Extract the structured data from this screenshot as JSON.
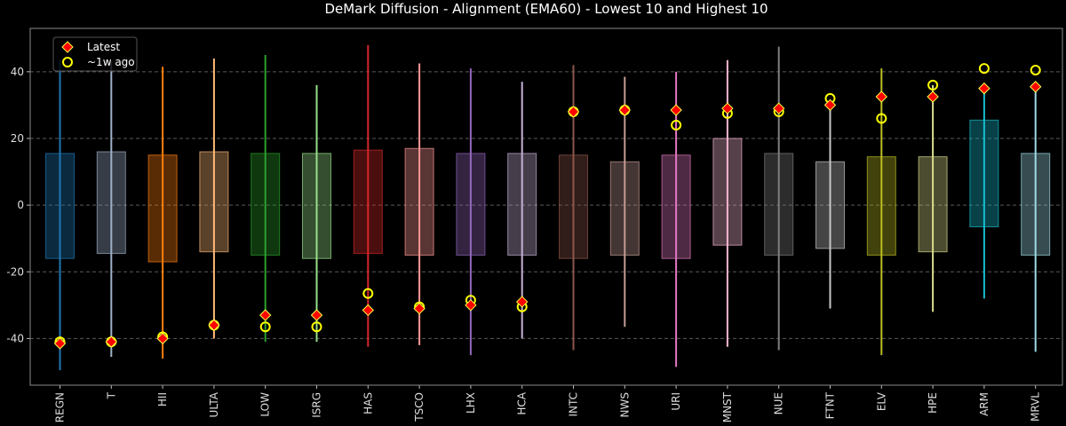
{
  "chart_data": {
    "type": "box-range",
    "title": "DeMark Diffusion - Alignment (EMA60) - Lowest 10 and Highest 10",
    "xlabel": "",
    "ylabel": "",
    "ylim": [
      -54,
      53
    ],
    "yticks": [
      -40,
      -20,
      0,
      20,
      40
    ],
    "grid": "horizontal-dashed",
    "legend_position": "top-left",
    "legend": [
      {
        "name": "Latest",
        "marker": "red-diamond"
      },
      {
        "name": "~1w ago",
        "marker": "yellow-circle"
      }
    ],
    "categories": [
      "REGN",
      "T",
      "HII",
      "ULTA",
      "LOW",
      "ISRG",
      "HAS",
      "TSCO",
      "LHX",
      "HCA",
      "INTC",
      "NWS",
      "URI",
      "MNST",
      "NUE",
      "FTNT",
      "ELV",
      "HPE",
      "ARM",
      "MRVL"
    ],
    "colors": [
      "#1f77b4",
      "#9fb0c8",
      "#ff7f0e",
      "#ffbb78",
      "#2ca02c",
      "#98df8a",
      "#d62728",
      "#ff9896",
      "#9467bd",
      "#c5b0d5",
      "#8c564b",
      "#c49c94",
      "#e377c2",
      "#f7b6d2",
      "#7f7f7f",
      "#c7c7c7",
      "#bcbd22",
      "#dbdb8d",
      "#17becf",
      "#9edae5"
    ],
    "series": [
      {
        "name": "Latest",
        "values": [
          -41.5,
          -41,
          -40,
          -36,
          -33,
          -33,
          -31.5,
          -31,
          -30,
          -29,
          28,
          28.5,
          28.5,
          29,
          29,
          30,
          32.5,
          32.5,
          35,
          35.5
        ]
      },
      {
        "name": "~1w ago",
        "values": [
          -41,
          -41,
          -39.5,
          -36,
          -36.5,
          -36.5,
          -26.5,
          -30.5,
          -28.5,
          -30.5,
          28,
          28.5,
          24,
          27.5,
          28,
          32,
          26,
          36,
          41,
          40.5
        ]
      }
    ],
    "range": {
      "low": [
        -49.5,
        -45.5,
        -46,
        -40,
        -41,
        -41,
        -42.5,
        -42,
        -45,
        -40,
        -43.5,
        -36.5,
        -48.5,
        -42.5,
        -43.5,
        -31,
        -45,
        -32,
        -28,
        -44
      ],
      "high": [
        43.5,
        43,
        41.5,
        44,
        45,
        36,
        48,
        42.5,
        41,
        37,
        42,
        38.5,
        40,
        43.5,
        47.5,
        30,
        41,
        36,
        35,
        35.5
      ]
    },
    "box": {
      "q1": [
        -16,
        -14.5,
        -17,
        -14,
        -15,
        -16,
        -14.5,
        -15,
        -15,
        -15,
        -16,
        -15,
        -16,
        -12,
        -15,
        -13,
        -15,
        -14,
        -6.5,
        -15
      ],
      "q3": [
        15.5,
        16,
        15,
        16,
        15.5,
        15.5,
        16.5,
        17,
        15.5,
        15.5,
        15,
        13,
        15,
        20,
        15.5,
        13,
        14.5,
        14.5,
        25.5,
        15.5
      ]
    }
  }
}
